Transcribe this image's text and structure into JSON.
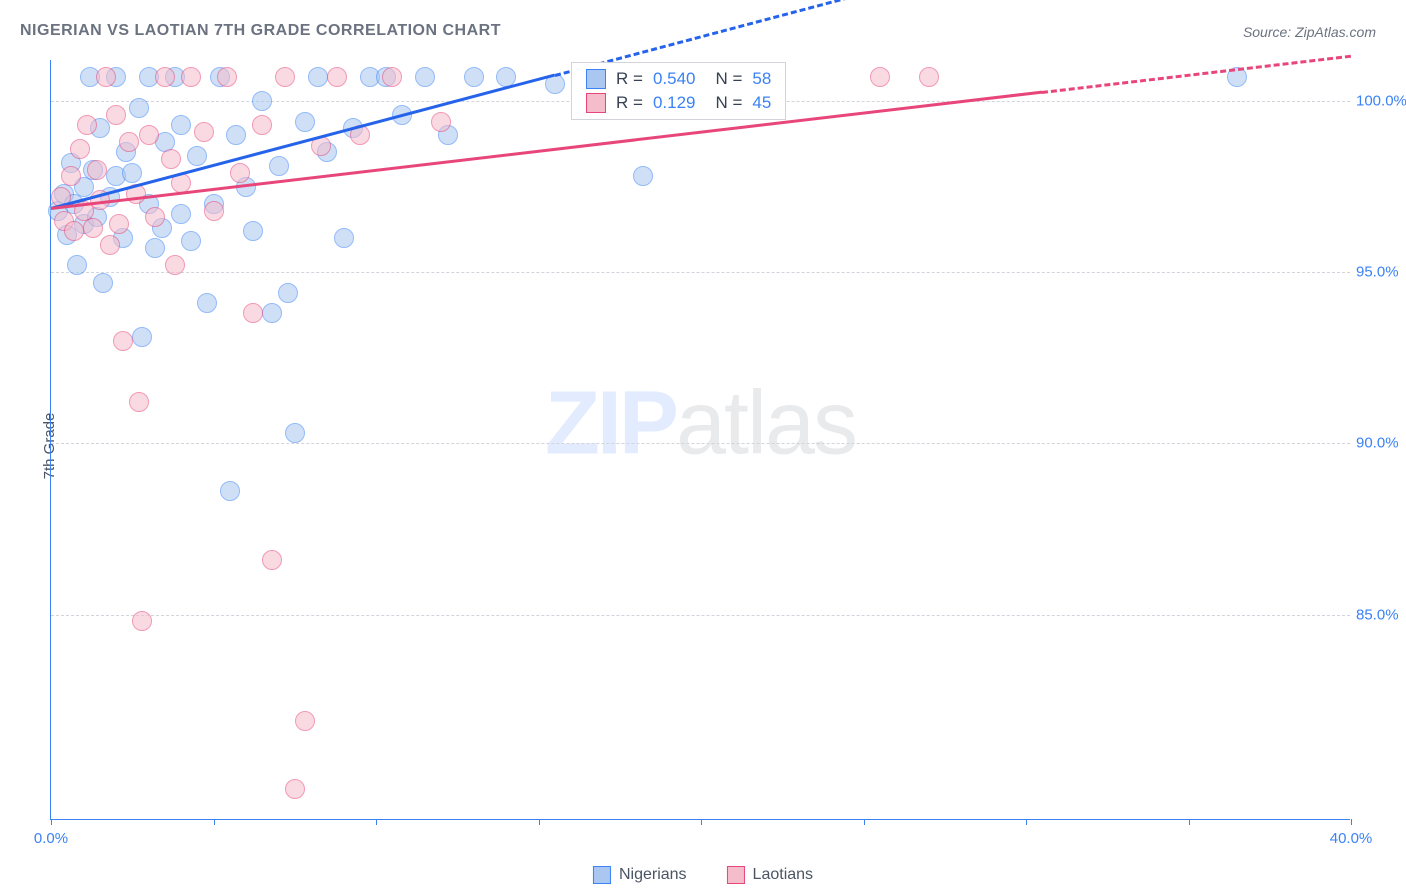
{
  "chart": {
    "type": "scatter",
    "title": "NIGERIAN VS LAOTIAN 7TH GRADE CORRELATION CHART",
    "source": "Source: ZipAtlas.com",
    "ylabel": "7th Grade",
    "background_color": "#ffffff",
    "grid_color": "#d1d5db",
    "axis_color": "#3b82f6",
    "tick_label_color": "#3b82f6",
    "title_color": "#6b7280",
    "title_fontsize": 16,
    "tick_fontsize": 15,
    "xlim": [
      0,
      40
    ],
    "ylim": [
      79,
      101.2
    ],
    "y_ticks": [
      85,
      90,
      95,
      100
    ],
    "y_tick_labels": [
      "85.0%",
      "90.0%",
      "95.0%",
      "100.0%"
    ],
    "x_ticks": [
      0,
      5,
      10,
      15,
      20,
      25,
      30,
      35,
      40
    ],
    "x_tick_labels_shown": {
      "0": "0.0%",
      "40": "40.0%"
    },
    "point_radius": 10,
    "point_opacity": 0.55,
    "line_width": 3,
    "watermark": {
      "part1": "ZIP",
      "part2": "atlas",
      "fontsize": 90
    },
    "legend_top": {
      "rows": [
        {
          "r_label": "R =",
          "r_value": "0.540",
          "n_label": "N =",
          "n_value": "58",
          "fill": "#a9c7f0",
          "border": "#3b82f6"
        },
        {
          "r_label": "R =",
          "r_value": "0.129",
          "n_label": "N =",
          "n_value": "45",
          "fill": "#f5bccb",
          "border": "#e8467a"
        }
      ],
      "value_color": "#3b82f6"
    },
    "legend_bottom": {
      "items": [
        {
          "label": "Nigerians",
          "fill": "#a9c7f0",
          "border": "#3b82f6"
        },
        {
          "label": "Laotians",
          "fill": "#f5bccb",
          "border": "#e8467a"
        }
      ]
    },
    "series": [
      {
        "name": "Nigerians",
        "color_fill": "#a9c7f0",
        "color_border": "#3b82f6",
        "trend": {
          "x1": 0,
          "y1": 96.9,
          "x2": 15.5,
          "y2": 100.8,
          "dash_extend_to_x": 38,
          "color": "#2563eb"
        },
        "points": [
          [
            0.2,
            96.8
          ],
          [
            0.4,
            97.3
          ],
          [
            0.5,
            96.1
          ],
          [
            0.6,
            98.2
          ],
          [
            0.7,
            97.0
          ],
          [
            0.8,
            95.2
          ],
          [
            1.0,
            97.5
          ],
          [
            1.0,
            96.4
          ],
          [
            1.2,
            100.7
          ],
          [
            1.3,
            98.0
          ],
          [
            1.4,
            96.6
          ],
          [
            1.5,
            99.2
          ],
          [
            1.6,
            94.7
          ],
          [
            1.8,
            97.2
          ],
          [
            2.0,
            97.8
          ],
          [
            2.0,
            100.7
          ],
          [
            2.2,
            96.0
          ],
          [
            2.3,
            98.5
          ],
          [
            2.5,
            97.9
          ],
          [
            2.7,
            99.8
          ],
          [
            2.8,
            93.1
          ],
          [
            3.0,
            100.7
          ],
          [
            3.0,
            97.0
          ],
          [
            3.2,
            95.7
          ],
          [
            3.4,
            96.3
          ],
          [
            3.5,
            98.8
          ],
          [
            3.8,
            100.7
          ],
          [
            4.0,
            99.3
          ],
          [
            4.0,
            96.7
          ],
          [
            4.3,
            95.9
          ],
          [
            4.5,
            98.4
          ],
          [
            4.8,
            94.1
          ],
          [
            5.0,
            97.0
          ],
          [
            5.2,
            100.7
          ],
          [
            5.5,
            88.6
          ],
          [
            5.7,
            99.0
          ],
          [
            6.0,
            97.5
          ],
          [
            6.2,
            96.2
          ],
          [
            6.5,
            100.0
          ],
          [
            6.8,
            93.8
          ],
          [
            7.0,
            98.1
          ],
          [
            7.3,
            94.4
          ],
          [
            7.5,
            90.3
          ],
          [
            7.8,
            99.4
          ],
          [
            8.2,
            100.7
          ],
          [
            8.5,
            98.5
          ],
          [
            9.0,
            96.0
          ],
          [
            9.3,
            99.2
          ],
          [
            9.8,
            100.7
          ],
          [
            10.3,
            100.7
          ],
          [
            10.8,
            99.6
          ],
          [
            11.5,
            100.7
          ],
          [
            12.2,
            99.0
          ],
          [
            13.0,
            100.7
          ],
          [
            14.0,
            100.7
          ],
          [
            15.5,
            100.5
          ],
          [
            18.2,
            97.8
          ],
          [
            36.5,
            100.7
          ]
        ]
      },
      {
        "name": "Laotians",
        "color_fill": "#f5bccb",
        "color_border": "#e8467a",
        "trend": {
          "x1": 0,
          "y1": 96.9,
          "x2": 30.5,
          "y2": 100.3,
          "dash_extend_to_x": 40,
          "color": "#e8467a"
        },
        "points": [
          [
            0.3,
            97.2
          ],
          [
            0.4,
            96.5
          ],
          [
            0.6,
            97.8
          ],
          [
            0.7,
            96.2
          ],
          [
            0.9,
            98.6
          ],
          [
            1.0,
            96.8
          ],
          [
            1.1,
            99.3
          ],
          [
            1.3,
            96.3
          ],
          [
            1.4,
            98.0
          ],
          [
            1.5,
            97.1
          ],
          [
            1.7,
            100.7
          ],
          [
            1.8,
            95.8
          ],
          [
            2.0,
            99.6
          ],
          [
            2.1,
            96.4
          ],
          [
            2.2,
            93.0
          ],
          [
            2.4,
            98.8
          ],
          [
            2.6,
            97.3
          ],
          [
            2.7,
            91.2
          ],
          [
            2.8,
            84.8
          ],
          [
            3.0,
            99.0
          ],
          [
            3.2,
            96.6
          ],
          [
            3.5,
            100.7
          ],
          [
            3.7,
            98.3
          ],
          [
            3.8,
            95.2
          ],
          [
            4.0,
            97.6
          ],
          [
            4.3,
            100.7
          ],
          [
            4.7,
            99.1
          ],
          [
            5.0,
            96.8
          ],
          [
            5.4,
            100.7
          ],
          [
            5.8,
            97.9
          ],
          [
            6.2,
            93.8
          ],
          [
            6.5,
            99.3
          ],
          [
            6.8,
            86.6
          ],
          [
            7.2,
            100.7
          ],
          [
            7.5,
            79.9
          ],
          [
            7.8,
            81.9
          ],
          [
            8.3,
            98.7
          ],
          [
            8.8,
            100.7
          ],
          [
            9.5,
            99.0
          ],
          [
            10.5,
            100.7
          ],
          [
            12.0,
            99.4
          ],
          [
            17.5,
            100.7
          ],
          [
            22.0,
            100.7
          ],
          [
            25.5,
            100.7
          ],
          [
            27.0,
            100.7
          ]
        ]
      }
    ]
  }
}
